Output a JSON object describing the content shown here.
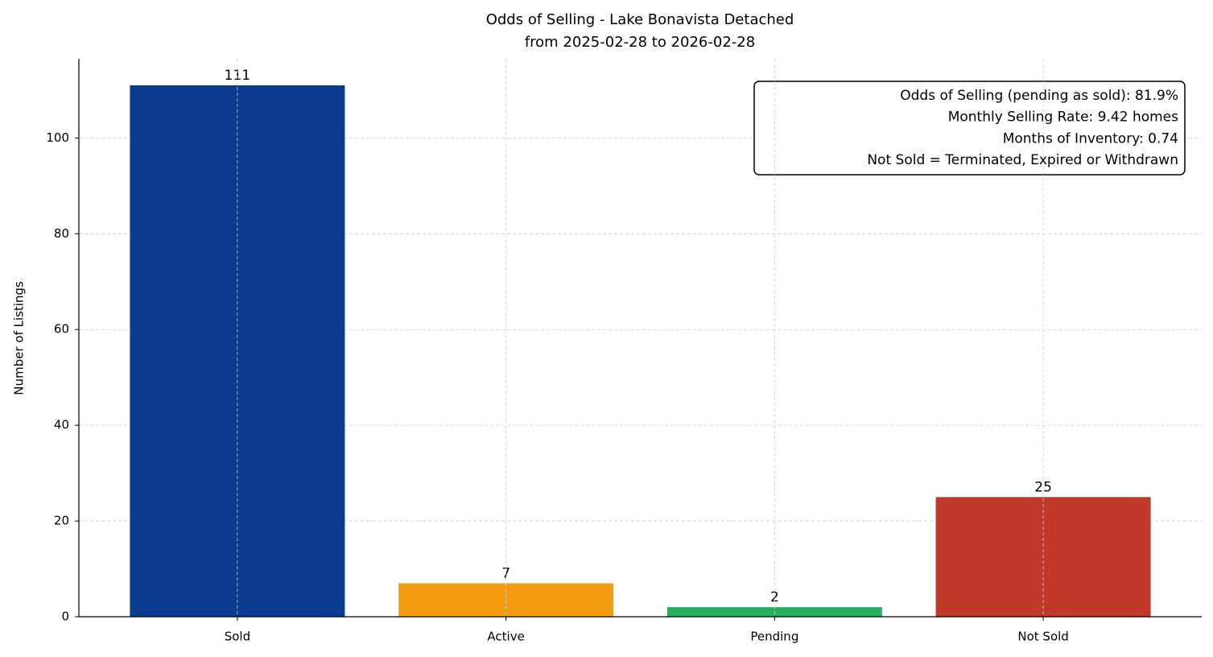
{
  "chart_data": {
    "type": "bar",
    "title": "Odds of Selling - Lake Bonavista Detached",
    "subtitle": "from 2025-02-28 to 2026-02-28",
    "y_label": "Number of Listings",
    "categories": [
      "Sold",
      "Active",
      "Pending",
      "Not Sold"
    ],
    "values": [
      111,
      7,
      2,
      25
    ],
    "colors": [
      "#0b3b8f",
      "#f39c12",
      "#27ae60",
      "#c0392b"
    ],
    "ylim": [
      0,
      116.55
    ],
    "yticks": [
      0,
      20,
      40,
      60,
      80,
      100
    ],
    "grid": true,
    "annotation": [
      "Odds of Selling (pending as sold): 81.9%",
      "Monthly Selling Rate: 9.42 homes",
      "Months of Inventory: 0.74",
      "Not Sold = Terminated, Expired or Withdrawn"
    ],
    "annotation_corner": "upper right"
  }
}
